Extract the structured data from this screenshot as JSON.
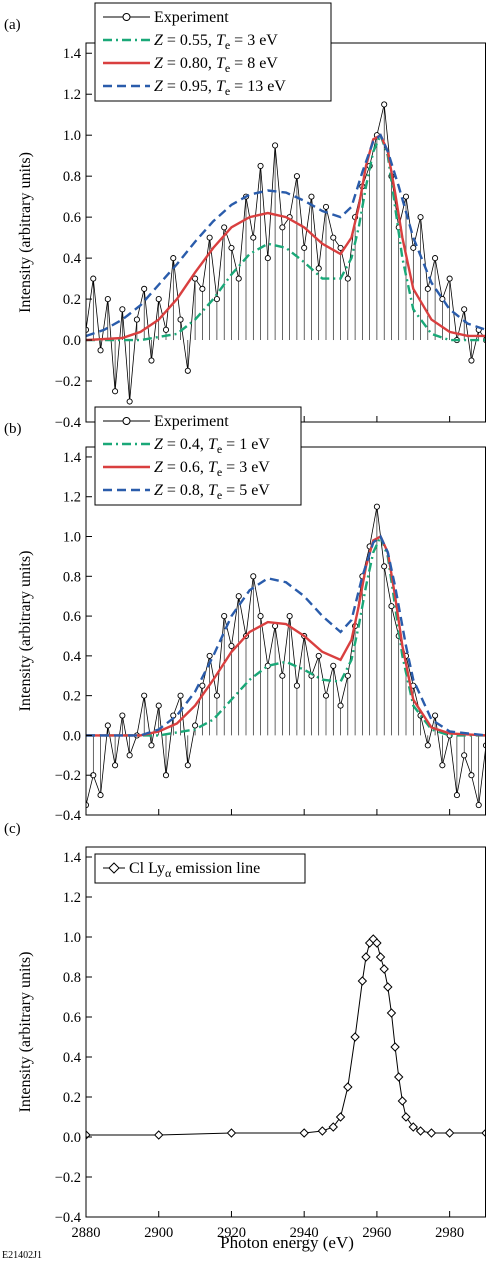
{
  "figure_id": "E21402J1",
  "xlabel": "Photon energy (eV)",
  "xticks": [
    2880,
    2900,
    2920,
    2940,
    2960,
    2980
  ],
  "xlim": [
    2880,
    2990
  ],
  "chart_data": [
    {
      "panel_label": "(a)",
      "type": "line",
      "ylabel": "Intensity (arbitrary units)",
      "ylim": [
        -0.4,
        1.45
      ],
      "yticks": [
        -0.4,
        -0.2,
        0.0,
        0.2,
        0.4,
        0.6,
        0.8,
        1.0,
        1.2,
        1.4
      ],
      "legend_position": "top-left",
      "experiment": {
        "name": "Experiment",
        "x": [
          2880,
          2882,
          2884,
          2886,
          2888,
          2890,
          2892,
          2894,
          2896,
          2898,
          2900,
          2902,
          2904,
          2906,
          2908,
          2910,
          2912,
          2914,
          2916,
          2918,
          2920,
          2922,
          2924,
          2926,
          2928,
          2930,
          2932,
          2934,
          2936,
          2938,
          2940,
          2942,
          2944,
          2946,
          2948,
          2950,
          2952,
          2954,
          2956,
          2958,
          2960,
          2962,
          2964,
          2966,
          2968,
          2970,
          2972,
          2974,
          2976,
          2978,
          2980,
          2982,
          2984,
          2986,
          2988,
          2990
        ],
        "y": [
          0.05,
          0.3,
          -0.05,
          0.2,
          -0.25,
          0.15,
          -0.3,
          0.1,
          0.25,
          -0.1,
          0.2,
          0.05,
          0.4,
          0.1,
          -0.15,
          0.3,
          0.25,
          0.5,
          0.2,
          0.55,
          0.45,
          0.3,
          0.7,
          0.5,
          0.85,
          0.4,
          0.95,
          0.55,
          0.6,
          0.8,
          0.45,
          0.7,
          0.35,
          0.65,
          0.5,
          0.45,
          0.3,
          0.6,
          0.75,
          0.85,
          1.0,
          1.15,
          0.8,
          0.55,
          0.7,
          0.45,
          0.6,
          0.25,
          0.4,
          0.2,
          0.3,
          0.0,
          0.15,
          -0.1,
          0.05,
          0.0
        ]
      },
      "series": [
        {
          "name": "Z = 0.55, Tₑ = 3 eV",
          "label_pre": "Z",
          "label_mid": " = 0.55, ",
          "label_t": "T",
          "label_sub": "e",
          "label_post": " = 3 eV",
          "color": "#1aa878",
          "dash": "dashdot",
          "x": [
            2880,
            2895,
            2905,
            2910,
            2915,
            2920,
            2925,
            2930,
            2935,
            2940,
            2945,
            2950,
            2953,
            2955,
            2957,
            2959,
            2961,
            2963,
            2965,
            2967,
            2970,
            2975,
            2980,
            2990
          ],
          "y": [
            0.0,
            0.0,
            0.03,
            0.1,
            0.2,
            0.32,
            0.42,
            0.47,
            0.45,
            0.38,
            0.3,
            0.3,
            0.4,
            0.55,
            0.75,
            0.92,
            1.0,
            0.9,
            0.65,
            0.4,
            0.15,
            0.03,
            0.0,
            0.0
          ]
        },
        {
          "name": "Z = 0.80, Tₑ = 8 eV",
          "label_pre": "Z",
          "label_mid": " = 0.80, ",
          "label_t": "T",
          "label_sub": "e",
          "label_post": " = 8 eV",
          "color": "#d93f3f",
          "dash": "solid",
          "x": [
            2880,
            2890,
            2895,
            2900,
            2905,
            2910,
            2915,
            2920,
            2925,
            2930,
            2935,
            2940,
            2945,
            2950,
            2953,
            2955,
            2957,
            2959,
            2961,
            2963,
            2965,
            2967,
            2970,
            2975,
            2980,
            2985,
            2990
          ],
          "y": [
            0.0,
            0.01,
            0.04,
            0.1,
            0.2,
            0.33,
            0.45,
            0.55,
            0.6,
            0.62,
            0.6,
            0.55,
            0.47,
            0.42,
            0.5,
            0.65,
            0.85,
            0.98,
            1.0,
            0.92,
            0.72,
            0.5,
            0.25,
            0.1,
            0.04,
            0.02,
            0.02
          ]
        },
        {
          "name": "Z = 0.95, Tₑ = 13 eV",
          "label_pre": "Z",
          "label_mid": " = 0.95, ",
          "label_t": "T",
          "label_sub": "e",
          "label_post": " = 13 eV",
          "color": "#2a5cab",
          "dash": "dashed",
          "x": [
            2880,
            2885,
            2890,
            2895,
            2900,
            2905,
            2910,
            2915,
            2920,
            2925,
            2930,
            2935,
            2940,
            2945,
            2950,
            2953,
            2956,
            2959,
            2961,
            2963,
            2966,
            2970,
            2975,
            2980,
            2985,
            2990
          ],
          "y": [
            0.02,
            0.05,
            0.1,
            0.17,
            0.27,
            0.37,
            0.48,
            0.58,
            0.66,
            0.71,
            0.73,
            0.72,
            0.68,
            0.63,
            0.6,
            0.65,
            0.82,
            0.97,
            1.0,
            0.92,
            0.75,
            0.5,
            0.28,
            0.15,
            0.08,
            0.05
          ]
        }
      ]
    },
    {
      "panel_label": "(b)",
      "type": "line",
      "ylabel": "Intensity (arbitrary units)",
      "ylim": [
        -0.4,
        1.45
      ],
      "yticks": [
        -0.4,
        -0.2,
        0.0,
        0.2,
        0.4,
        0.6,
        0.8,
        1.0,
        1.2,
        1.4
      ],
      "legend_position": "top-left",
      "experiment": {
        "name": "Experiment",
        "x": [
          2880,
          2882,
          2884,
          2886,
          2888,
          2890,
          2892,
          2894,
          2896,
          2898,
          2900,
          2902,
          2904,
          2906,
          2908,
          2910,
          2912,
          2914,
          2916,
          2918,
          2920,
          2922,
          2924,
          2926,
          2928,
          2930,
          2932,
          2934,
          2936,
          2938,
          2940,
          2942,
          2944,
          2946,
          2948,
          2950,
          2952,
          2954,
          2956,
          2958,
          2960,
          2962,
          2964,
          2966,
          2968,
          2970,
          2972,
          2974,
          2976,
          2978,
          2980,
          2982,
          2984,
          2986,
          2988,
          2990
        ],
        "y": [
          -0.35,
          -0.2,
          -0.3,
          0.05,
          -0.15,
          0.1,
          -0.1,
          0.0,
          0.2,
          -0.05,
          0.15,
          -0.2,
          0.1,
          0.2,
          -0.15,
          0.05,
          0.25,
          0.4,
          0.2,
          0.6,
          0.45,
          0.7,
          0.5,
          0.8,
          0.6,
          0.35,
          0.55,
          0.3,
          0.6,
          0.25,
          0.5,
          0.3,
          0.4,
          0.2,
          0.35,
          0.15,
          0.3,
          0.55,
          0.8,
          0.95,
          1.15,
          0.85,
          0.65,
          0.5,
          0.4,
          0.25,
          0.1,
          -0.05,
          0.1,
          -0.15,
          0.0,
          -0.3,
          -0.1,
          -0.2,
          -0.35,
          -0.05
        ]
      },
      "series": [
        {
          "name": "Z = 0.4, Tₑ = 1 eV",
          "label_pre": "Z",
          "label_mid": " = 0.4, ",
          "label_t": "T",
          "label_sub": "e",
          "label_post": " = 1 eV",
          "color": "#1aa878",
          "dash": "dashdot",
          "x": [
            2880,
            2900,
            2910,
            2915,
            2920,
            2925,
            2930,
            2935,
            2940,
            2945,
            2950,
            2953,
            2955,
            2957,
            2959,
            2961,
            2963,
            2965,
            2967,
            2970,
            2975,
            2980,
            2990
          ],
          "y": [
            0.0,
            0.0,
            0.03,
            0.08,
            0.18,
            0.28,
            0.35,
            0.37,
            0.33,
            0.28,
            0.27,
            0.38,
            0.55,
            0.75,
            0.92,
            1.0,
            0.9,
            0.65,
            0.4,
            0.15,
            0.03,
            0.0,
            0.0
          ]
        },
        {
          "name": "Z = 0.6, Tₑ = 3 eV",
          "label_pre": "Z",
          "label_mid": " = 0.6, ",
          "label_t": "T",
          "label_sub": "e",
          "label_post": " = 3 eV",
          "color": "#d93f3f",
          "dash": "solid",
          "x": [
            2880,
            2895,
            2900,
            2905,
            2910,
            2915,
            2920,
            2925,
            2930,
            2935,
            2940,
            2945,
            2950,
            2953,
            2955,
            2957,
            2959,
            2961,
            2963,
            2965,
            2967,
            2970,
            2975,
            2980,
            2990
          ],
          "y": [
            0.0,
            0.0,
            0.02,
            0.06,
            0.15,
            0.28,
            0.42,
            0.52,
            0.57,
            0.56,
            0.5,
            0.42,
            0.38,
            0.48,
            0.65,
            0.85,
            0.98,
            1.0,
            0.92,
            0.7,
            0.45,
            0.18,
            0.04,
            0.01,
            0.0
          ]
        },
        {
          "name": "Z = 0.8, Tₑ = 5 eV",
          "label_pre": "Z",
          "label_mid": " = 0.8, ",
          "label_t": "T",
          "label_sub": "e",
          "label_post": " = 5 eV",
          "color": "#2a5cab",
          "dash": "dashed",
          "x": [
            2880,
            2895,
            2900,
            2905,
            2910,
            2915,
            2920,
            2925,
            2930,
            2935,
            2940,
            2945,
            2950,
            2953,
            2956,
            2959,
            2961,
            2963,
            2965,
            2968,
            2970,
            2975,
            2980,
            2990
          ],
          "y": [
            0.0,
            0.0,
            0.03,
            0.1,
            0.22,
            0.4,
            0.6,
            0.73,
            0.79,
            0.77,
            0.7,
            0.6,
            0.52,
            0.58,
            0.8,
            0.97,
            1.0,
            0.92,
            0.75,
            0.45,
            0.28,
            0.08,
            0.02,
            0.0
          ]
        }
      ]
    },
    {
      "panel_label": "(c)",
      "type": "line",
      "ylabel": "Intensity (arbitrary units)",
      "ylim": [
        -0.4,
        1.45
      ],
      "yticks": [
        -0.4,
        -0.2,
        0.0,
        0.2,
        0.4,
        0.6,
        0.8,
        1.0,
        1.2,
        1.4
      ],
      "legend_position": "top-left",
      "series": [
        {
          "name": "Cl Lyα emission line",
          "label_main": "Cl Ly",
          "label_sub": "α",
          "label_post": " emission line",
          "color": "#000000",
          "marker": "diamond",
          "x": [
            2880,
            2900,
            2920,
            2940,
            2945,
            2948,
            2950,
            2952,
            2954,
            2956,
            2957,
            2958,
            2959,
            2960,
            2961,
            2962,
            2963,
            2964,
            2965,
            2966,
            2967,
            2968,
            2970,
            2972,
            2975,
            2980,
            2990
          ],
          "y": [
            0.01,
            0.01,
            0.02,
            0.02,
            0.03,
            0.05,
            0.1,
            0.25,
            0.5,
            0.78,
            0.9,
            0.97,
            0.99,
            0.97,
            0.9,
            0.84,
            0.75,
            0.62,
            0.45,
            0.3,
            0.18,
            0.1,
            0.05,
            0.03,
            0.02,
            0.02,
            0.02
          ]
        }
      ]
    }
  ]
}
